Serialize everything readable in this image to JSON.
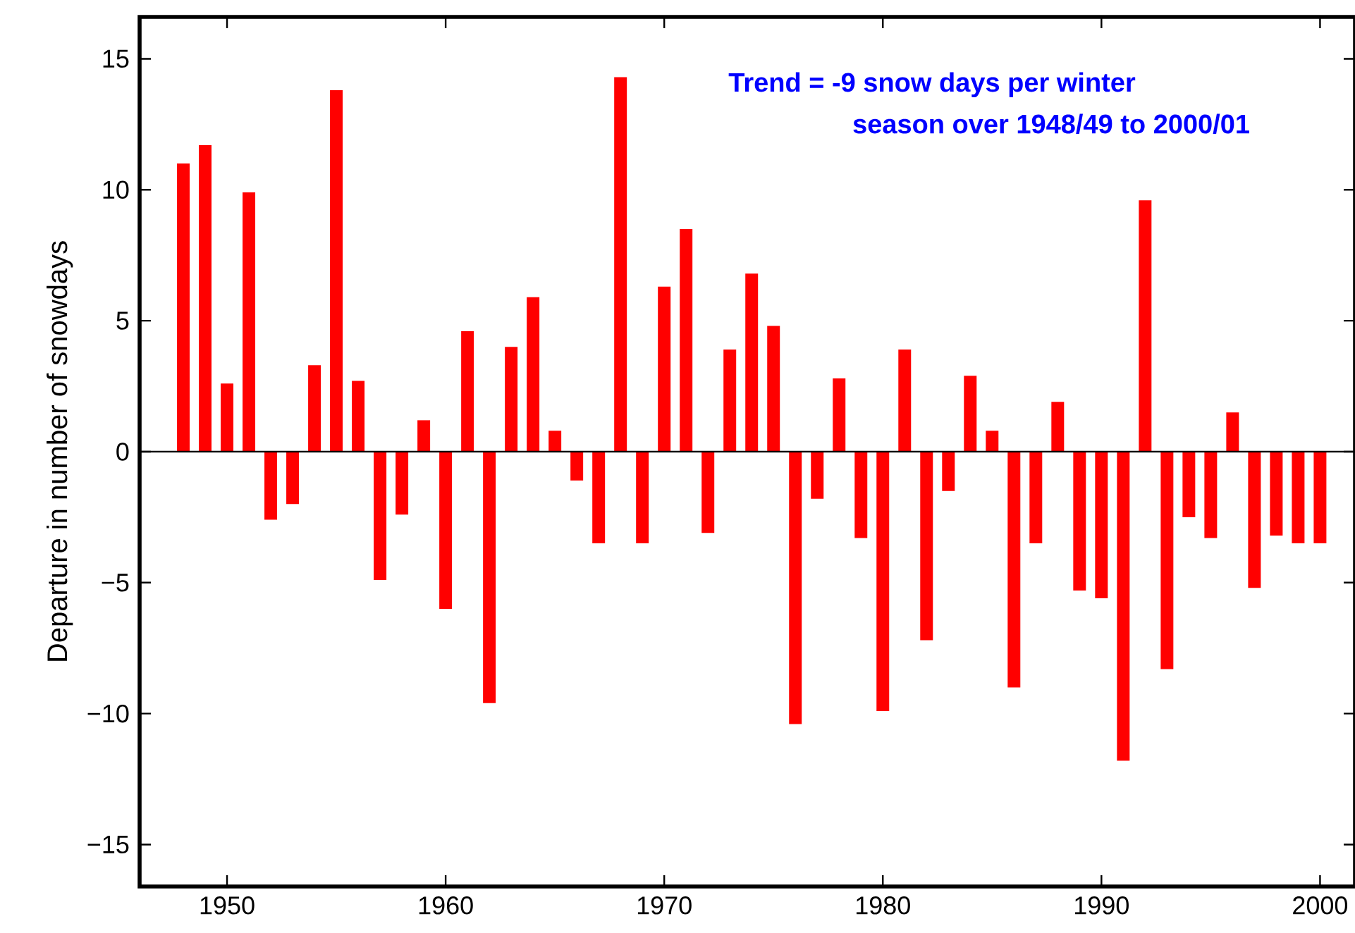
{
  "chart_data": {
    "type": "bar",
    "ylabel": "Departure in number of snowdays",
    "annotations": [
      "Trend = -9 snow days per winter",
      "season over 1948/49 to 2000/01"
    ],
    "x": [
      1948,
      1949,
      1950,
      1951,
      1952,
      1953,
      1954,
      1955,
      1956,
      1957,
      1958,
      1959,
      1960,
      1961,
      1962,
      1963,
      1964,
      1965,
      1966,
      1967,
      1968,
      1969,
      1970,
      1971,
      1972,
      1973,
      1974,
      1975,
      1976,
      1977,
      1978,
      1979,
      1980,
      1981,
      1982,
      1983,
      1984,
      1985,
      1986,
      1987,
      1988,
      1989,
      1990,
      1991,
      1992,
      1993,
      1994,
      1995,
      1996,
      1997,
      1998,
      1999,
      2000
    ],
    "values": [
      11.0,
      11.7,
      2.6,
      9.9,
      -2.6,
      -2.0,
      3.3,
      13.8,
      2.7,
      -4.9,
      -2.4,
      1.2,
      -6.0,
      4.6,
      -9.6,
      4.0,
      5.9,
      0.8,
      -1.1,
      -3.5,
      14.3,
      -3.5,
      6.3,
      8.5,
      -3.1,
      3.9,
      6.8,
      4.8,
      -10.4,
      -1.8,
      2.8,
      -3.3,
      -9.9,
      3.9,
      -7.2,
      -1.5,
      2.9,
      0.8,
      -9.0,
      -3.5,
      1.9,
      -5.3,
      -5.6,
      -11.8,
      9.6,
      -8.3,
      -2.5,
      -3.3,
      1.5,
      -5.2,
      -3.2,
      -3.5,
      -3.5
    ],
    "color": "#ff0000",
    "xlim": [
      1946,
      2001.6
    ],
    "ylim": [
      -16.6,
      16.6
    ],
    "xticks": [
      1950,
      1960,
      1970,
      1980,
      1990,
      2000
    ],
    "yticks": [
      {
        "value": -15,
        "label": "−15"
      },
      {
        "value": -10,
        "label": "−10"
      },
      {
        "value": -5,
        "label": "−5"
      },
      0,
      5,
      10,
      15
    ],
    "ref_lines": [
      {
        "axis": "y",
        "value": 0,
        "color": "#000000"
      }
    ]
  }
}
